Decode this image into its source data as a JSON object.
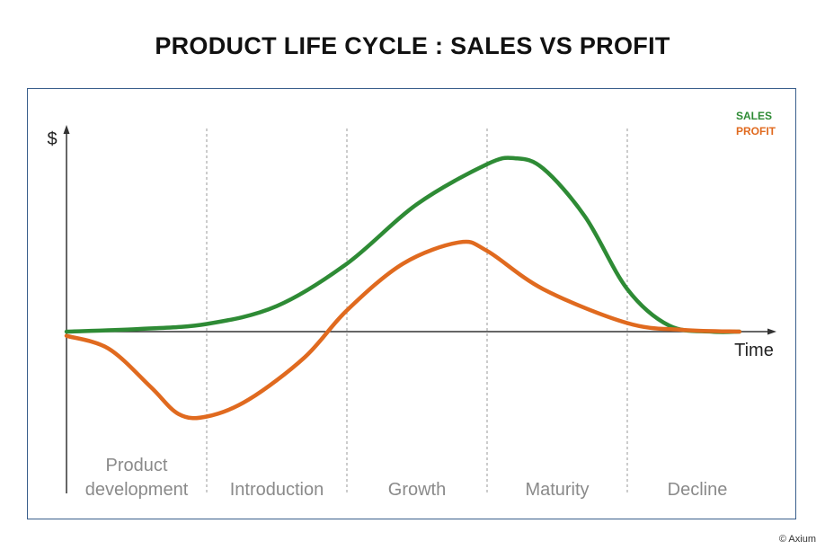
{
  "title": "PRODUCT LIFE CYCLE : SALES VS PROFIT",
  "copyright": "© Axium",
  "colors": {
    "sales": "#2e8b35",
    "profit": "#e06a1f",
    "frame": "#3a5f8c",
    "axis": "#333333",
    "divider": "#9a9a9a",
    "stage_label": "#8a8a8a"
  },
  "axes": {
    "y_label": "$",
    "x_label": "Time"
  },
  "legend": {
    "position": "top-right",
    "items": [
      {
        "label": "SALES",
        "color": "#2e8b35"
      },
      {
        "label": "PROFIT",
        "color": "#e06a1f"
      }
    ]
  },
  "stages": [
    {
      "lines": [
        "Product",
        "development"
      ]
    },
    {
      "lines": [
        "Introduction"
      ]
    },
    {
      "lines": [
        "Growth"
      ]
    },
    {
      "lines": [
        "Maturity"
      ]
    },
    {
      "lines": [
        "Decline"
      ]
    }
  ],
  "chart_data": {
    "type": "line",
    "x_range": [
      0,
      5
    ],
    "y_range": [
      -1,
      2.2
    ],
    "grid": false,
    "series": [
      {
        "name": "SALES",
        "color": "#2e8b35",
        "points": [
          [
            0,
            0
          ],
          [
            0.5,
            0.03
          ],
          [
            1,
            0.09
          ],
          [
            1.5,
            0.3
          ],
          [
            2,
            0.8
          ],
          [
            2.5,
            1.5
          ],
          [
            3,
            1.97
          ],
          [
            3.2,
            2.04
          ],
          [
            3.4,
            1.92
          ],
          [
            3.7,
            1.35
          ],
          [
            4,
            0.5
          ],
          [
            4.3,
            0.07
          ],
          [
            4.6,
            0
          ],
          [
            4.8,
            0
          ]
        ]
      },
      {
        "name": "PROFIT",
        "color": "#e06a1f",
        "points": [
          [
            0,
            -0.05
          ],
          [
            0.3,
            -0.2
          ],
          [
            0.6,
            -0.65
          ],
          [
            0.8,
            -0.97
          ],
          [
            1,
            -1.0
          ],
          [
            1.3,
            -0.8
          ],
          [
            1.7,
            -0.3
          ],
          [
            2,
            0.25
          ],
          [
            2.4,
            0.8
          ],
          [
            2.8,
            1.05
          ],
          [
            3,
            0.95
          ],
          [
            3.4,
            0.5
          ],
          [
            4,
            0.1
          ],
          [
            4.4,
            0.02
          ],
          [
            4.8,
            0
          ]
        ]
      }
    ]
  }
}
